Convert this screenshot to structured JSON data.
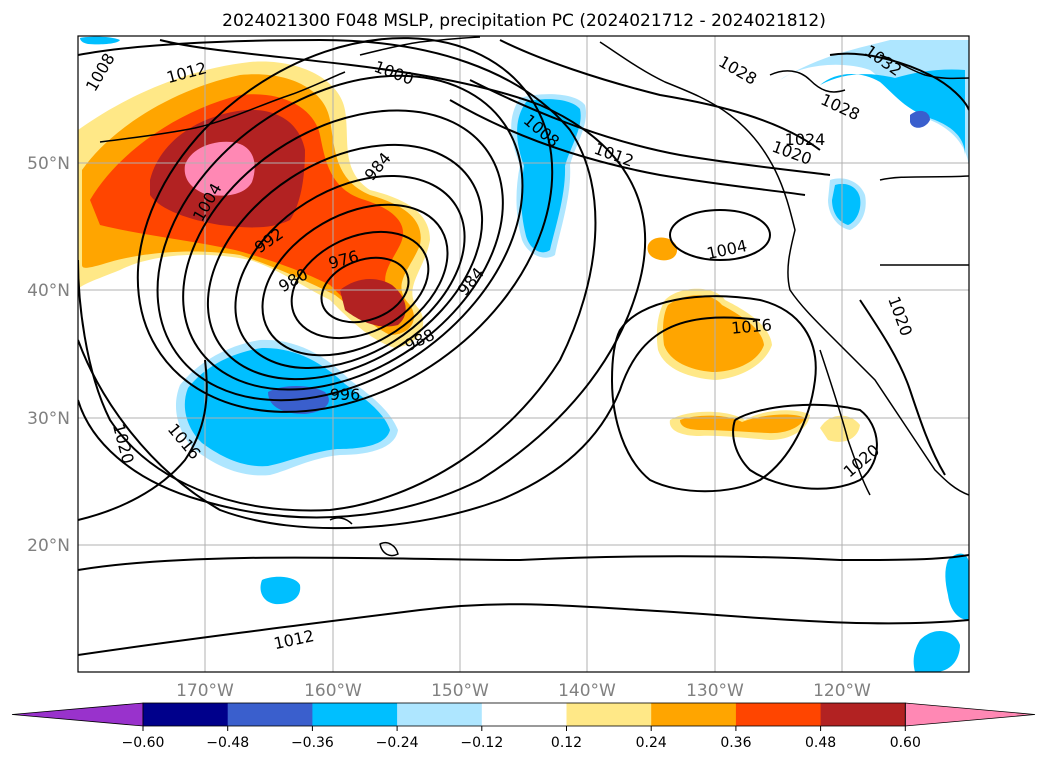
{
  "title": "2024021300 F048 MSLP, precipitation PC (2024021712 - 2024021812)",
  "lat_labels": [
    "50°N",
    "40°N",
    "30°N",
    "20°N"
  ],
  "lon_labels": [
    "170°W",
    "160°W",
    "150°W",
    "140°W",
    "130°W",
    "120°W"
  ],
  "contour_labels": [
    {
      "text": "1008"
    },
    {
      "text": "1012"
    },
    {
      "text": "1000"
    },
    {
      "text": "1004"
    },
    {
      "text": "984"
    },
    {
      "text": "992"
    },
    {
      "text": "980"
    },
    {
      "text": "976"
    },
    {
      "text": "984"
    },
    {
      "text": "988"
    },
    {
      "text": "996"
    },
    {
      "text": "1020"
    },
    {
      "text": "1016"
    },
    {
      "text": "1008"
    },
    {
      "text": "1012"
    },
    {
      "text": "1028"
    },
    {
      "text": "1032"
    },
    {
      "text": "1028"
    },
    {
      "text": "1024"
    },
    {
      "text": "1020"
    },
    {
      "text": "1004"
    },
    {
      "text": "1016"
    },
    {
      "text": "1020"
    },
    {
      "text": "1020"
    },
    {
      "text": "1012"
    }
  ],
  "colorbar": {
    "ticks": [
      "−0.60",
      "−0.48",
      "−0.36",
      "−0.24",
      "−0.12",
      "0.12",
      "0.24",
      "0.36",
      "0.48",
      "0.60"
    ],
    "colors": [
      "#9932cc",
      "#00008b",
      "#3a5fcd",
      "#00bfff",
      "#aee6ff",
      "#ffffff",
      "#ffe887",
      "#ffa500",
      "#ff4500",
      "#b22222",
      "#ff88b4"
    ]
  },
  "colors": {
    "pos_light": "#ffe887",
    "pos_orange": "#ffa500",
    "pos_red": "#ff4500",
    "pos_darkred": "#b22222",
    "pos_pink": "#ff88b4",
    "neg_light": "#aee6ff",
    "neg_blue": "#00bfff",
    "neg_mid": "#3a5fcd"
  }
}
